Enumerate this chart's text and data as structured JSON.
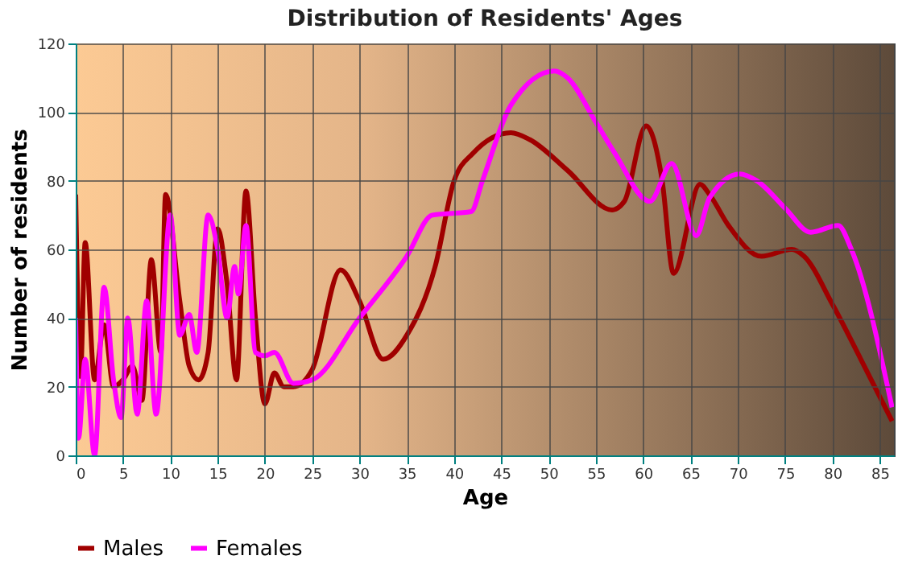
{
  "chart_data": {
    "type": "line",
    "title": "Distribution of Residents' Ages",
    "xlabel": "Age",
    "ylabel": "Number of residents",
    "xlim": [
      0,
      86.5
    ],
    "xticks": [
      0,
      5,
      10,
      15,
      20,
      25,
      30,
      35,
      40,
      45,
      50,
      55,
      60,
      65,
      70,
      75,
      80,
      85
    ],
    "ylim": [
      0,
      120
    ],
    "yticks": [
      0,
      20,
      40,
      60,
      80,
      100,
      120
    ],
    "grid": true,
    "legend": "bottom",
    "series": [
      {
        "name": "Males",
        "color": "#a00000",
        "x": [
          0,
          0.5,
          1,
          2,
          3,
          4,
          5,
          6,
          7,
          8,
          9,
          9.5,
          11,
          12,
          13,
          14,
          15,
          16,
          17,
          18,
          19,
          20,
          21,
          22,
          23,
          25,
          28,
          30,
          32.5,
          35,
          38,
          40,
          42,
          46,
          48,
          52,
          56.7,
          58,
          60.3,
          62,
          63.2,
          66,
          67,
          69,
          72.5,
          75.7,
          77,
          80,
          83,
          86.3
        ],
        "values": [
          76,
          23,
          62,
          22,
          38,
          20,
          22,
          26,
          16,
          57,
          30,
          76,
          45,
          26,
          22,
          30,
          66,
          50,
          22,
          77,
          40,
          15,
          24,
          20,
          20,
          25,
          54,
          45,
          28,
          35,
          55,
          80,
          88,
          94,
          92,
          83,
          71.5,
          74,
          96,
          80,
          53,
          79,
          76,
          67,
          58,
          60,
          58,
          44,
          28,
          10
        ]
      },
      {
        "name": "Females",
        "color": "#ff00ff",
        "x": [
          0,
          0.3,
          1,
          2,
          3,
          4,
          4.8,
          5.5,
          6.5,
          7.5,
          8.5,
          10,
          11,
          12,
          12.8,
          14,
          15,
          16,
          16.8,
          17.2,
          18,
          19,
          20,
          21,
          23,
          25,
          30,
          35,
          37.7,
          41.8,
          43,
          46,
          50.6,
          52,
          55,
          57,
          60.7,
          63,
          65.6,
          67,
          70.2,
          72,
          75,
          77.7,
          80.6,
          82,
          86.3
        ],
        "values": [
          40,
          5,
          28,
          0,
          49,
          22,
          11,
          40,
          12,
          45,
          12,
          70,
          35,
          41,
          30,
          70,
          60,
          40,
          55,
          47,
          67,
          30,
          29,
          30,
          21,
          22,
          40,
          58,
          70,
          71,
          80,
          102,
          112,
          110,
          97,
          88,
          74,
          85,
          64,
          75,
          82,
          80,
          72,
          65,
          67,
          60,
          14
        ]
      }
    ]
  }
}
